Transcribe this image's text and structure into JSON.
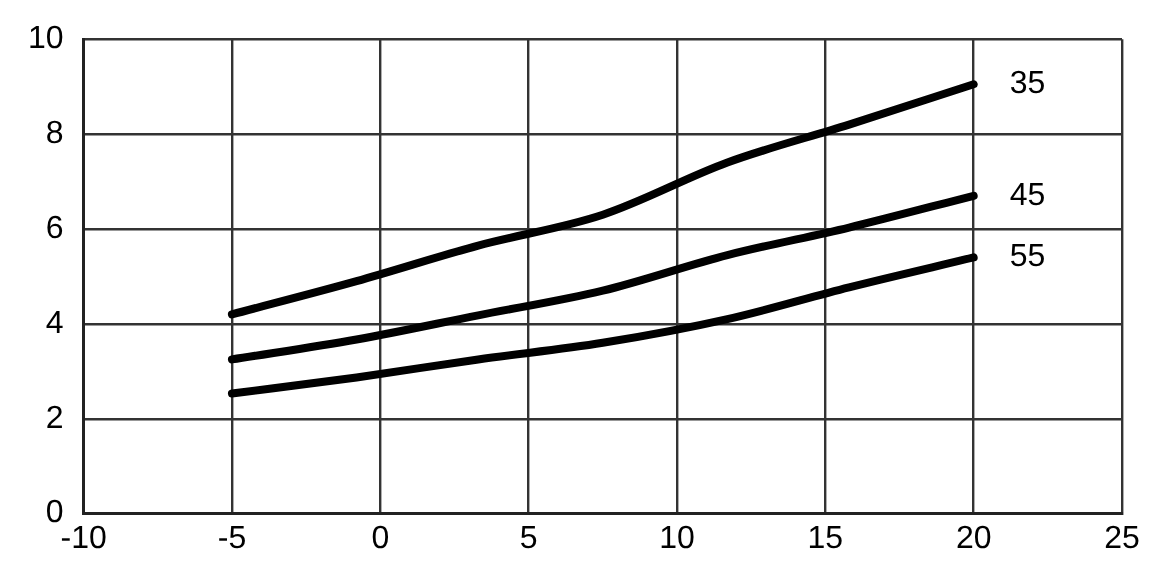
{
  "chart_data": {
    "type": "line",
    "xlim": [
      -10,
      25
    ],
    "xticks": [
      -10,
      -5,
      0,
      5,
      10,
      15,
      20,
      25
    ],
    "ylim": [
      0,
      10
    ],
    "yticks": [
      0,
      2,
      4,
      6,
      8,
      10
    ],
    "grid": true,
    "legend": false,
    "marker": "none",
    "line_style": "solid",
    "series": [
      {
        "name": "35",
        "color": "#000000",
        "x": [
          -5,
          -0.8,
          3.3,
          7.5,
          11.7,
          15.8,
          20
        ],
        "values": [
          4.2,
          4.9,
          5.65,
          6.3,
          7.4,
          8.2,
          9.05
        ]
      },
      {
        "name": "45",
        "color": "#000000",
        "x": [
          -5,
          -0.8,
          3.3,
          7.5,
          11.7,
          15.8,
          20
        ],
        "values": [
          3.25,
          3.67,
          4.18,
          4.7,
          5.45,
          6.03,
          6.7
        ]
      },
      {
        "name": "55",
        "color": "#000000",
        "x": [
          -5,
          -0.8,
          3.3,
          7.5,
          11.7,
          15.8,
          20
        ],
        "values": [
          2.53,
          2.87,
          3.25,
          3.6,
          4.1,
          4.77,
          5.4
        ]
      }
    ]
  }
}
